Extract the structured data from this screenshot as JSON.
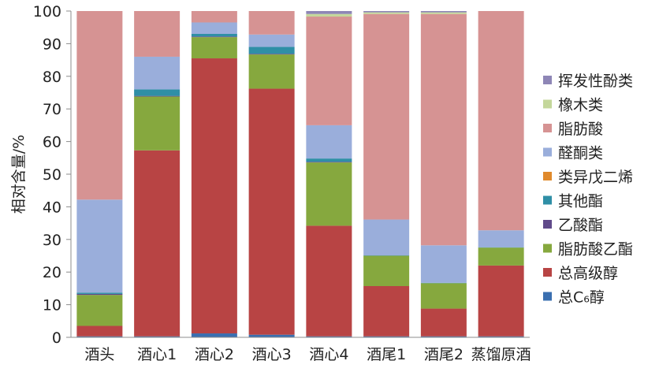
{
  "chart_data": {
    "type": "bar",
    "stacked": true,
    "ylabel": "相对含量/%",
    "ylim": [
      0,
      100
    ],
    "yticks": [
      0,
      10,
      20,
      30,
      40,
      50,
      60,
      70,
      80,
      90,
      100
    ],
    "grid": false,
    "legend_position": "right",
    "categories": [
      "酒头",
      "酒心1",
      "酒心2",
      "酒心3",
      "酒心4",
      "酒尾1",
      "酒尾2",
      "蒸馏原酒"
    ],
    "series": [
      {
        "name": "总C₆醇",
        "color": "#3a6fb0",
        "values": [
          0.3,
          0.3,
          1.2,
          0.8,
          0.3,
          0.3,
          0.3,
          0.3
        ]
      },
      {
        "name": "总高级醇",
        "color": "#b84444",
        "values": [
          3.2,
          57.0,
          84.3,
          75.4,
          33.9,
          15.4,
          8.5,
          21.7
        ]
      },
      {
        "name": "脂肪酸乙酯",
        "color": "#86a83e",
        "values": [
          9.5,
          16.5,
          6.5,
          10.5,
          19.4,
          9.3,
          7.8,
          5.5
        ]
      },
      {
        "name": "乙酸酯",
        "color": "#604a8a",
        "values": [
          0.3,
          0.2,
          0.2,
          0.2,
          0.2,
          0.0,
          0.0,
          0.0
        ]
      },
      {
        "name": "其他酯",
        "color": "#2f8fa6",
        "values": [
          0.4,
          2.0,
          0.8,
          2.1,
          1.0,
          0.1,
          0.1,
          0.1
        ]
      },
      {
        "name": "类异戊二烯",
        "color": "#e08a2c",
        "values": [
          0.0,
          0.0,
          0.0,
          0.0,
          0.0,
          0.0,
          0.0,
          0.0
        ]
      },
      {
        "name": "醛酮类",
        "color": "#9aaedb",
        "values": [
          28.5,
          10.0,
          3.5,
          3.8,
          10.2,
          11.0,
          11.5,
          5.2
        ]
      },
      {
        "name": "脂肪酸",
        "color": "#d69393",
        "values": [
          57.8,
          14.0,
          3.5,
          7.2,
          33.3,
          63.0,
          70.9,
          67.2
        ]
      },
      {
        "name": "橡木类",
        "color": "#c4d79b",
        "values": [
          0.0,
          0.0,
          0.0,
          0.0,
          0.8,
          0.5,
          0.5,
          0.0
        ]
      },
      {
        "name": "挥发性酚类",
        "color": "#8e86b6",
        "values": [
          0.0,
          0.0,
          0.0,
          0.0,
          0.9,
          0.4,
          0.4,
          0.0
        ]
      }
    ]
  }
}
